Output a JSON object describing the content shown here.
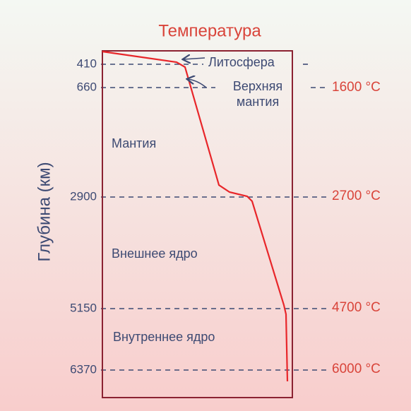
{
  "title": "Температура",
  "y_axis_label": "Глубина (км)",
  "depths": [
    {
      "depth": "410",
      "layer": "Литосфера"
    },
    {
      "depth": "660",
      "layer": "Верхняя",
      "layer_line2": "мантия",
      "temperature": "1600 °C"
    },
    {
      "depth": "2900",
      "temperature": "2700 °C"
    },
    {
      "depth": "5150",
      "temperature": "4700 °C"
    },
    {
      "depth": "6370",
      "temperature": "6000 °C"
    }
  ],
  "regions": [
    "Мантия",
    "Внешнее ядро",
    "Внутреннее ядро"
  ]
}
